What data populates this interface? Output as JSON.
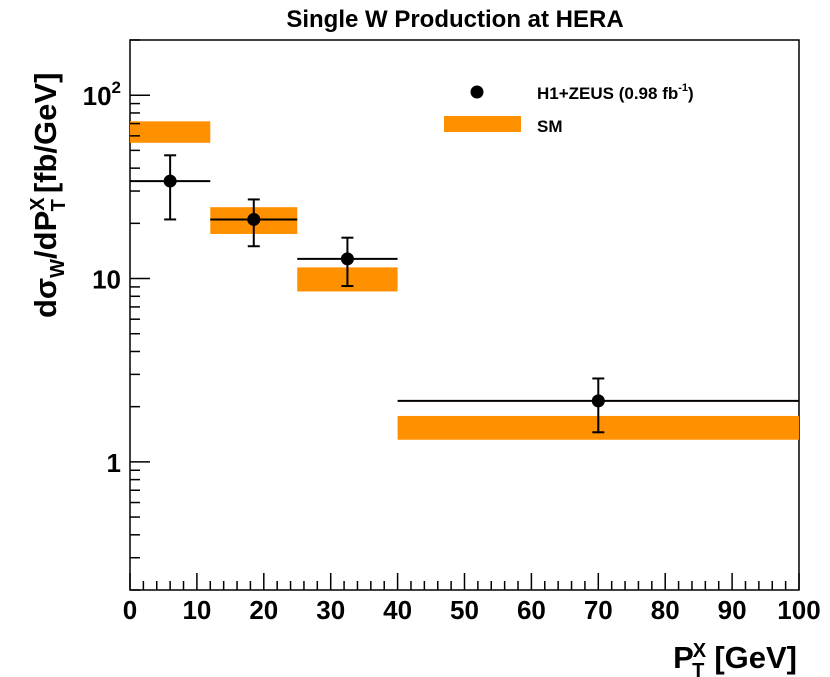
{
  "chart_data": {
    "type": "scatter",
    "title": "Single W Production at HERA",
    "xlabel": {
      "main": "P",
      "sub": "T",
      "sup": "X",
      "unit": "[GeV]"
    },
    "ylabel": {
      "d": "d",
      "sigma": "σ",
      "sub_w": "W",
      "slash": "/dP",
      "sub_t": "T",
      "sup_x": "X",
      "unit": "[fb/GeV]"
    },
    "x_scale": "linear",
    "y_scale": "log",
    "xlim": [
      0,
      100
    ],
    "ylim": [
      0.2,
      200
    ],
    "x_ticks": [
      {
        "value": 0,
        "label": "0"
      },
      {
        "value": 10,
        "label": "10"
      },
      {
        "value": 20,
        "label": "20"
      },
      {
        "value": 30,
        "label": "30"
      },
      {
        "value": 40,
        "label": "40"
      },
      {
        "value": 50,
        "label": "50"
      },
      {
        "value": 60,
        "label": "60"
      },
      {
        "value": 70,
        "label": "70"
      },
      {
        "value": 80,
        "label": "80"
      },
      {
        "value": 90,
        "label": "90"
      },
      {
        "value": 100,
        "label": "100"
      }
    ],
    "y_ticks": [
      {
        "value": 1,
        "label": "1"
      },
      {
        "value": 10,
        "label": "10"
      },
      {
        "value": 100,
        "label": "10",
        "exponent": "2"
      }
    ],
    "legend": {
      "position": "top-right",
      "data_label": "H1+ZEUS (0.98 fb",
      "data_label_sup": "-1",
      "data_label_end": ")",
      "sm_label": "SM"
    },
    "series": [
      {
        "name": "H1+ZEUS (0.98 fb-1)",
        "kind": "data",
        "color": "#000000",
        "points": [
          {
            "x": 6,
            "x_low": 0,
            "x_high": 12,
            "y": 34,
            "y_low": 21,
            "y_high": 47
          },
          {
            "x": 18.5,
            "x_low": 12,
            "x_high": 25,
            "y": 21,
            "y_low": 15,
            "y_high": 27
          },
          {
            "x": 32.5,
            "x_low": 25,
            "x_high": 40,
            "y": 12.8,
            "y_low": 9.1,
            "y_high": 16.7
          },
          {
            "x": 70,
            "x_low": 40,
            "x_high": 100,
            "y": 2.15,
            "y_low": 1.45,
            "y_high": 2.85
          }
        ]
      },
      {
        "name": "SM",
        "kind": "band",
        "color": "#ff9000",
        "bands": [
          {
            "x_low": 0,
            "x_high": 12,
            "y_low": 55,
            "y_high": 72
          },
          {
            "x_low": 12,
            "x_high": 25,
            "y_low": 17.5,
            "y_high": 24.5
          },
          {
            "x_low": 25,
            "x_high": 40,
            "y_low": 8.5,
            "y_high": 11.5
          },
          {
            "x_low": 40,
            "x_high": 100,
            "y_low": 1.32,
            "y_high": 1.78
          }
        ]
      }
    ]
  }
}
